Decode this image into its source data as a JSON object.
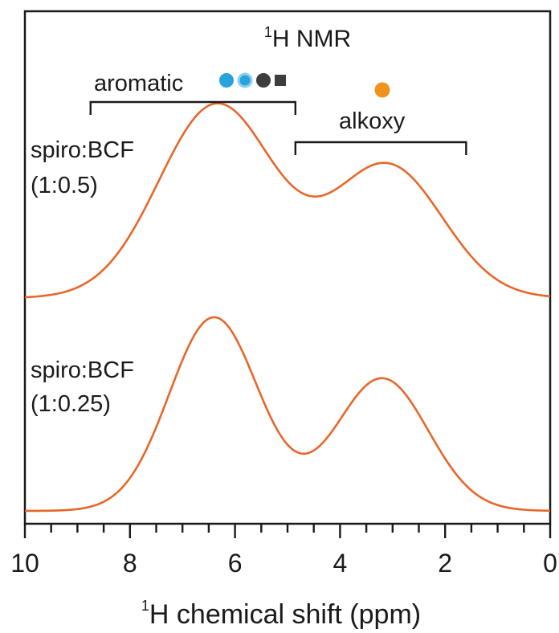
{
  "chart_data": {
    "type": "line",
    "title": {
      "sup": "1",
      "main": "H NMR"
    },
    "xlabel": {
      "sup": "1",
      "main": "H chemical shift (ppm)"
    },
    "ylabel": "",
    "xlim": [
      10,
      0
    ],
    "x_reversed": true,
    "x_ticks_major": [
      10,
      8,
      6,
      4,
      2,
      0
    ],
    "x_ticks_minor_step": 0.5,
    "grid": false,
    "series": [
      {
        "name": "spiro:BCF (1:0.5)",
        "label_line1": "spiro:BCF",
        "label_line2": "(1:0.5)",
        "color": "#e8662a",
        "peaks": [
          {
            "center": 6.35,
            "height": 0.73,
            "sigma": 1.1
          },
          {
            "center": 3.1,
            "height": 0.5,
            "sigma": 1.05
          }
        ]
      },
      {
        "name": "spiro:BCF (1:0.25)",
        "label_line1": "spiro:BCF",
        "label_line2": "(1:0.25)",
        "color": "#e8662a",
        "peaks": [
          {
            "center": 6.4,
            "height": 0.73,
            "sigma": 0.85
          },
          {
            "center": 3.2,
            "height": 0.5,
            "sigma": 0.88
          }
        ]
      }
    ],
    "annotations": [
      {
        "label": "aromatic",
        "bracket_range": [
          8.75,
          4.85
        ],
        "markers": [
          {
            "shape": "circle",
            "color": "#29a3dc"
          },
          {
            "shape": "circle",
            "color": "#29a3dc",
            "ring": "#8fd0ee"
          },
          {
            "shape": "circle",
            "color": "#3d3d3d"
          },
          {
            "shape": "square",
            "color": "#3d3d3d"
          }
        ]
      },
      {
        "label": "alkoxy",
        "bracket_range": [
          4.85,
          1.6
        ],
        "markers": [
          {
            "shape": "circle",
            "color": "#f0921c"
          }
        ]
      }
    ]
  }
}
